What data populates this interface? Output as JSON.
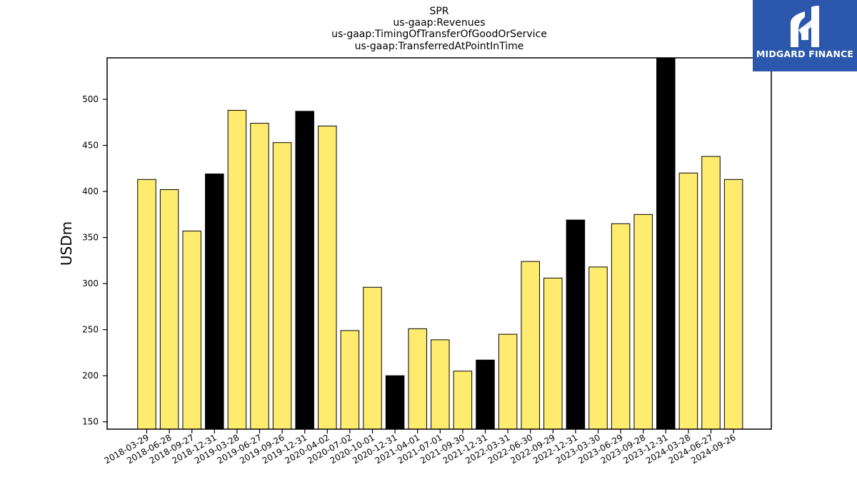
{
  "logo": {
    "text": "MIDGARD FINANCE",
    "icon": "midgard-logo-icon",
    "background": "#2b58ac"
  },
  "chart_data": {
    "type": "bar",
    "title_lines": [
      "SPR",
      "us-gaap:Revenues",
      "us-gaap:TimingOfTransferOfGoodOrService",
      "us-gaap:TransferredAtPointInTime"
    ],
    "ylabel": "USDm",
    "xlabel": "",
    "ylim": [
      142,
      545
    ],
    "yticks": [
      150,
      200,
      250,
      300,
      350,
      400,
      450,
      500
    ],
    "grid": false,
    "colors": {
      "quarter": "#ffec6e",
      "year_end": "#000000",
      "edge": "#000000"
    },
    "categories": [
      "2018-03-29",
      "2018-06-28",
      "2018-09-27",
      "2018-12-31",
      "2019-03-28",
      "2019-06-27",
      "2019-09-26",
      "2019-12-31",
      "2020-04-02",
      "2020-07-02",
      "2020-10-01",
      "2020-12-31",
      "2021-04-01",
      "2021-07-01",
      "2021-09-30",
      "2021-12-31",
      "2022-03-31",
      "2022-06-30",
      "2022-09-29",
      "2022-12-31",
      "2023-03-30",
      "2023-06-29",
      "2023-09-28",
      "2023-12-31",
      "2024-03-28",
      "2024-06-27",
      "2024-09-26"
    ],
    "values": [
      413,
      402,
      357,
      419,
      488,
      474,
      453,
      487,
      471,
      249,
      296,
      200,
      251,
      239,
      205,
      217,
      245,
      324,
      306,
      369,
      318,
      365,
      375,
      548,
      420,
      438,
      413
    ],
    "year_end": [
      false,
      false,
      false,
      true,
      false,
      false,
      false,
      true,
      false,
      false,
      false,
      true,
      false,
      false,
      false,
      true,
      false,
      false,
      false,
      true,
      false,
      false,
      false,
      true,
      false,
      false,
      false
    ]
  }
}
